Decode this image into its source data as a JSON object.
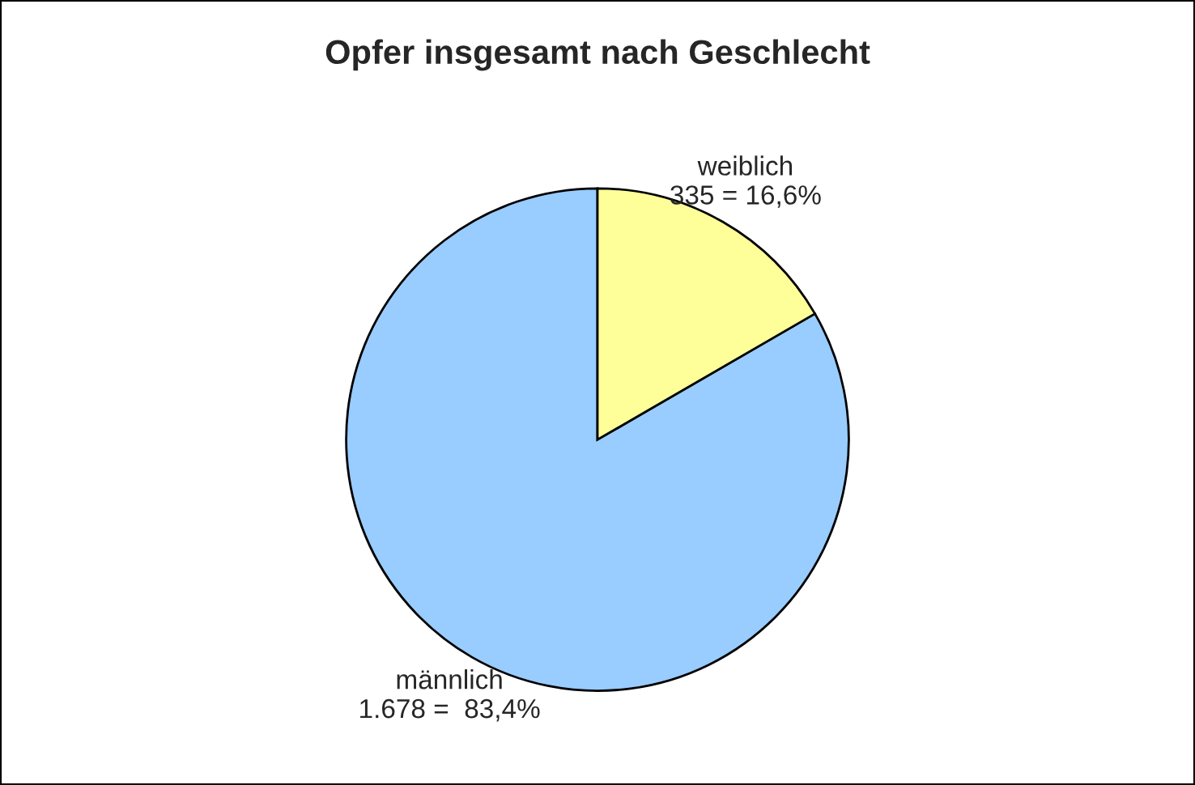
{
  "chart_data": {
    "type": "pie",
    "title": "Opfer insgesamt nach Geschlecht",
    "categories": [
      "männlich",
      "weiblich"
    ],
    "values": [
      1678,
      335
    ],
    "value_labels": [
      "1.678 =  83,4%",
      "335 = 16,6%"
    ],
    "colors": [
      "#99ccff",
      "#ffff99"
    ],
    "legend": false
  }
}
